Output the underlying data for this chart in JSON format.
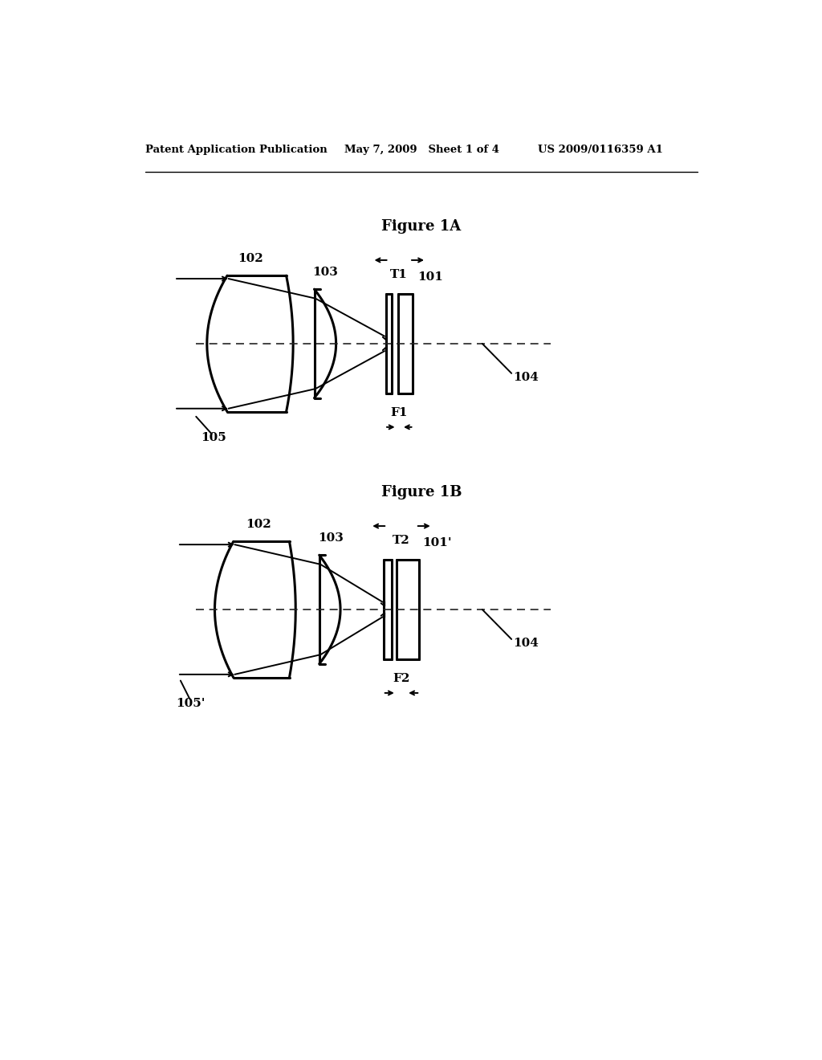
{
  "header_left": "Patent Application Publication",
  "header_mid": "May 7, 2009   Sheet 1 of 4",
  "header_right": "US 2009/0116359 A1",
  "fig1a_title": "Figure 1A",
  "fig1b_title": "Figure 1B",
  "bg_color": "#ffffff",
  "line_color": "#000000"
}
